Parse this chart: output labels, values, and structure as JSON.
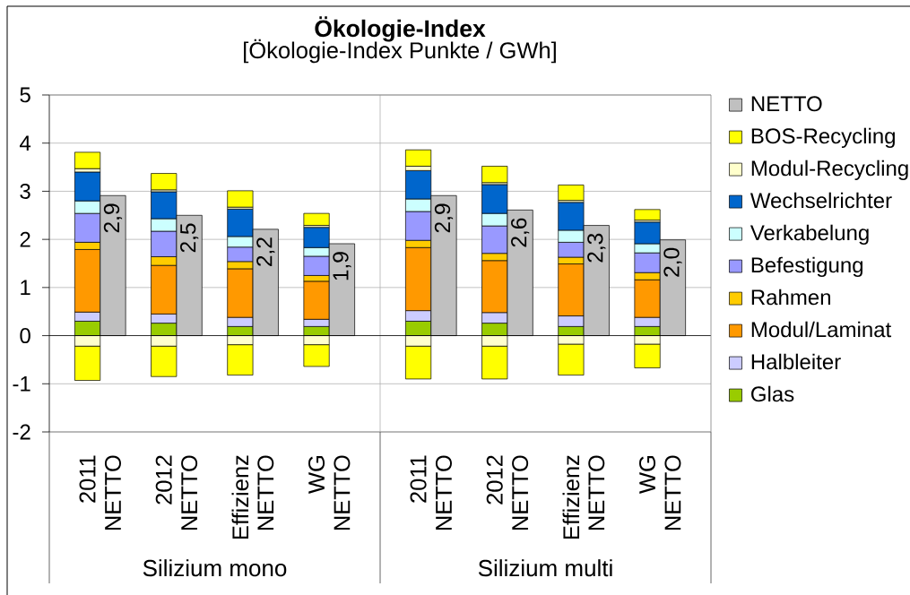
{
  "chart_data": {
    "type": "bar",
    "stacked": true,
    "title": "Ökologie-Index",
    "subtitle": "[Ökologie-Index Punkte / GWh]",
    "categories": [
      "2011",
      "NETTO",
      "2012",
      "NETTO",
      "Effizienz",
      "NETTO",
      "WG",
      "NETTO",
      "2011",
      "NETTO",
      "2012",
      "NETTO",
      "Effizienz",
      "NETTO",
      "WG",
      "NETTO"
    ],
    "series": [
      {
        "name": "Glas",
        "color": "#99cc00",
        "values": [
          0.3,
          null,
          0.26,
          null,
          0.19,
          null,
          0.19,
          null,
          0.3,
          null,
          0.26,
          null,
          0.19,
          null,
          0.19,
          null
        ]
      },
      {
        "name": "Halbleiter",
        "color": "#ccccff",
        "values": [
          0.19,
          null,
          0.19,
          null,
          0.19,
          null,
          0.15,
          null,
          0.22,
          null,
          0.22,
          null,
          0.22,
          null,
          0.19,
          null
        ]
      },
      {
        "name": "Modul/Laminat",
        "color": "#ff9900",
        "values": [
          1.3,
          null,
          1.01,
          null,
          1.01,
          null,
          0.79,
          null,
          1.31,
          null,
          1.08,
          null,
          1.08,
          null,
          0.78,
          null
        ]
      },
      {
        "name": "Rahmen",
        "color": "#ffcc00",
        "values": [
          0.15,
          null,
          0.18,
          null,
          0.15,
          null,
          0.12,
          null,
          0.15,
          null,
          0.15,
          null,
          0.14,
          null,
          0.15,
          null
        ]
      },
      {
        "name": "Befestigung",
        "color": "#9999ff",
        "values": [
          0.6,
          null,
          0.53,
          null,
          0.3,
          null,
          0.4,
          null,
          0.6,
          null,
          0.57,
          null,
          0.31,
          null,
          0.41,
          null
        ]
      },
      {
        "name": "Verkabelung",
        "color": "#ccffff",
        "values": [
          0.26,
          null,
          0.26,
          null,
          0.22,
          null,
          0.18,
          null,
          0.26,
          null,
          0.26,
          null,
          0.25,
          null,
          0.19,
          null
        ]
      },
      {
        "name": "Wechselrichter",
        "color": "#0066cc",
        "values": [
          0.6,
          null,
          0.56,
          null,
          0.57,
          null,
          0.42,
          null,
          0.59,
          null,
          0.6,
          null,
          0.58,
          null,
          0.45,
          null
        ]
      },
      {
        "name": "Modul-Recycling",
        "color": "#ffffcc",
        "values": [
          0.07,
          null,
          0.04,
          null,
          0.04,
          null,
          0.04,
          null,
          0.09,
          null,
          0.04,
          null,
          0.04,
          null,
          0.04,
          null
        ]
      },
      {
        "name": "BOS-Recycling",
        "color": "#ffff00",
        "values": [
          0.34,
          null,
          0.34,
          null,
          0.34,
          null,
          0.25,
          null,
          0.34,
          null,
          0.34,
          null,
          0.32,
          null,
          0.22,
          null
        ]
      },
      {
        "color": "#ffffcc",
        "values": [
          -0.22,
          null,
          -0.22,
          null,
          -0.19,
          null,
          -0.19,
          null,
          -0.22,
          null,
          -0.22,
          null,
          -0.18,
          null,
          -0.18,
          null
        ]
      },
      {
        "color": "#ffff00",
        "values": [
          -0.71,
          null,
          -0.63,
          null,
          -0.63,
          null,
          -0.45,
          null,
          -0.68,
          null,
          -0.68,
          null,
          -0.64,
          null,
          -0.49,
          null
        ]
      },
      {
        "name": "NETTO",
        "color": "#c0c0c0",
        "values": [
          null,
          2.91,
          null,
          2.5,
          null,
          2.21,
          null,
          1.91,
          null,
          2.91,
          null,
          2.61,
          null,
          2.29,
          null,
          1.99
        ],
        "value_labels": [
          null,
          "2,9",
          null,
          "2,5",
          null,
          "2,2",
          null,
          "1,9",
          null,
          "2,9",
          null,
          "2,6",
          null,
          "2,3",
          null,
          "2,0"
        ]
      }
    ],
    "ylim": [
      -2,
      5
    ],
    "yticks": [
      -2,
      -1,
      0,
      1,
      2,
      3,
      4,
      5
    ],
    "grid": true,
    "legend": "right",
    "annotations": [
      "Silizium mono",
      "Silizium multi"
    ]
  }
}
